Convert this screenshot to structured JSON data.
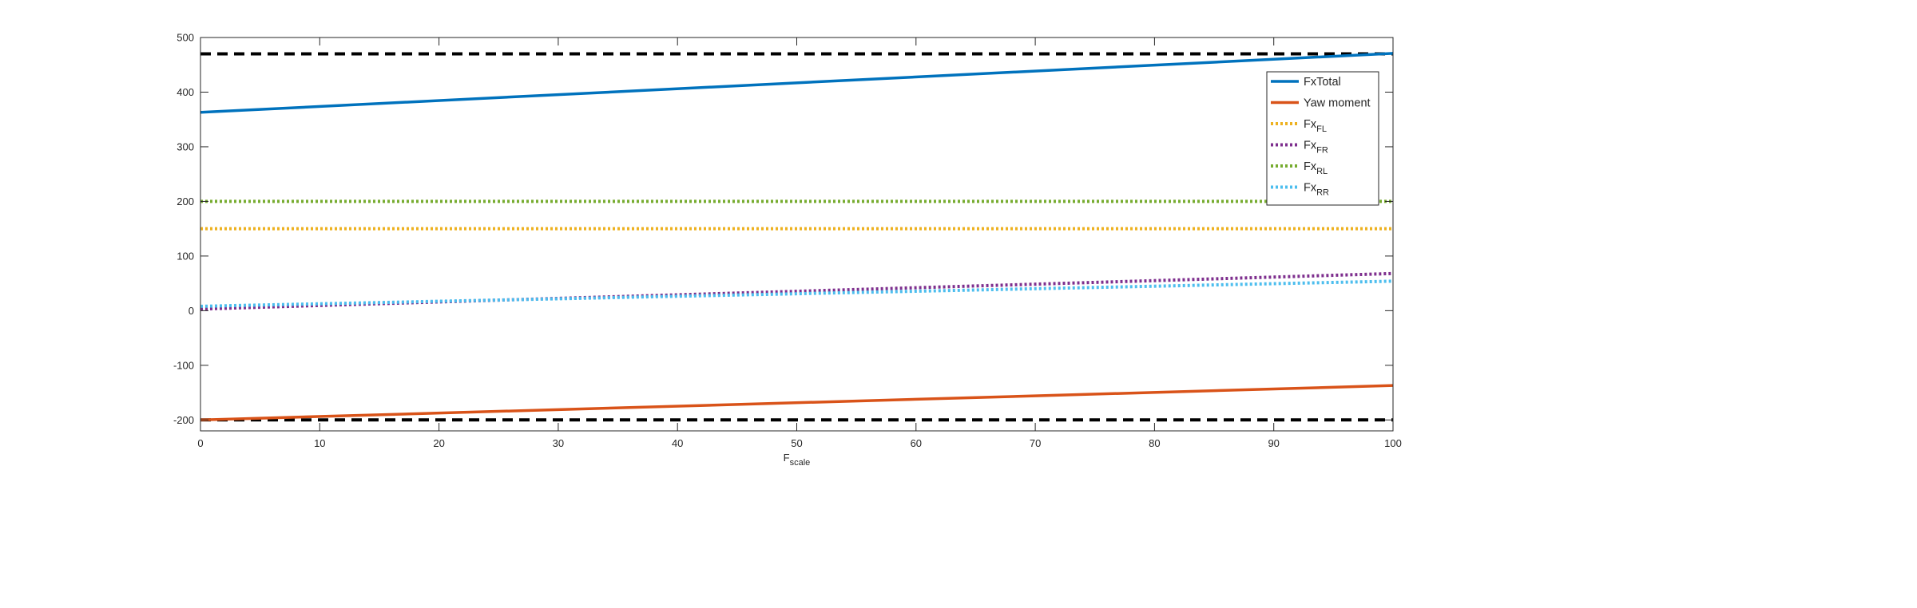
{
  "chart_data": {
    "type": "line",
    "title": "",
    "xlabel": "F",
    "xlabel_subscript": "scale",
    "ylabel": "",
    "xlim": [
      0,
      100
    ],
    "ylim": [
      -220,
      500
    ],
    "x_ticks": [
      0,
      10,
      20,
      30,
      40,
      50,
      60,
      70,
      80,
      90,
      100
    ],
    "y_ticks": [
      -200,
      -100,
      0,
      100,
      200,
      300,
      400,
      500
    ],
    "grid": false,
    "legend_position": "top-right",
    "series": [
      {
        "name": "FxTotal",
        "name_base": "FxTotal",
        "name_sub": "",
        "style": "solid",
        "color": "#0072BD",
        "x": [
          0,
          100
        ],
        "y": [
          363,
          471
        ]
      },
      {
        "name": "Yaw moment",
        "name_base": "Yaw moment",
        "name_sub": "",
        "style": "solid",
        "color": "#D95319",
        "x": [
          0,
          100
        ],
        "y": [
          -200,
          -137
        ]
      },
      {
        "name": "FxFL",
        "name_base": "Fx",
        "name_sub": "FL",
        "style": "dotted",
        "color": "#EDB120",
        "x": [
          0,
          100
        ],
        "y": [
          150,
          150
        ]
      },
      {
        "name": "FxFR",
        "name_base": "Fx",
        "name_sub": "FR",
        "style": "dotted",
        "color": "#7E2F8E",
        "x": [
          0,
          100
        ],
        "y": [
          3,
          68
        ]
      },
      {
        "name": "FxRL",
        "name_base": "Fx",
        "name_sub": "RL",
        "style": "dotted",
        "color": "#77AC30",
        "x": [
          0,
          100
        ],
        "y": [
          200,
          200
        ]
      },
      {
        "name": "FxRR",
        "name_base": "Fx",
        "name_sub": "RR",
        "style": "dotted",
        "color": "#4DBEEE",
        "x": [
          0,
          100
        ],
        "y": [
          8,
          54
        ]
      }
    ],
    "reference_lines": [
      {
        "y": 470,
        "style": "dashed",
        "color": "#000000"
      },
      {
        "y": -200,
        "style": "dashed",
        "color": "#000000"
      }
    ]
  }
}
